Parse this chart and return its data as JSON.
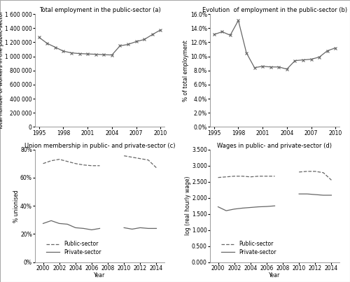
{
  "panel_a": {
    "title": "Total employment in the public-sector (a)",
    "xlabel": "",
    "ylabel": "Total number of workers in the public-sector",
    "years": [
      1995,
      1996,
      1997,
      1998,
      1999,
      2000,
      2001,
      2002,
      2003,
      2004,
      2005,
      2006,
      2007,
      2008,
      2009,
      2010
    ],
    "values": [
      1270000,
      1185000,
      1130000,
      1075000,
      1050000,
      1040000,
      1035000,
      1030000,
      1025000,
      1020000,
      1150000,
      1170000,
      1210000,
      1240000,
      1310000,
      1375000
    ],
    "ylim": [
      0,
      1600000
    ],
    "yticks": [
      0,
      200000,
      400000,
      600000,
      800000,
      1000000,
      1200000,
      1400000,
      1600000
    ],
    "xlim": [
      1994.5,
      2010.5
    ],
    "xticks": [
      1995,
      1998,
      2001,
      2004,
      2007,
      2010
    ]
  },
  "panel_b": {
    "title": "Evolution  of employment in the public-sector (b)",
    "xlabel": "",
    "ylabel": "% of total employment",
    "years": [
      1995,
      1996,
      1997,
      1998,
      1999,
      2000,
      2001,
      2002,
      2003,
      2004,
      2005,
      2006,
      2007,
      2008,
      2009,
      2010
    ],
    "values": [
      13.1,
      13.5,
      13.0,
      15.1,
      10.5,
      8.4,
      8.6,
      8.5,
      8.5,
      8.2,
      9.4,
      9.5,
      9.6,
      9.9,
      10.8,
      11.2
    ],
    "ylim": [
      0,
      16
    ],
    "ytick_vals": [
      0,
      2,
      4,
      6,
      8,
      10,
      12,
      14,
      16
    ],
    "ytick_labels": [
      "0.0%",
      "2.0%",
      "4.0%",
      "6.0%",
      "8.0%",
      "10.0%",
      "12.0%",
      "14.0%",
      "16.0%"
    ],
    "xlim": [
      1994.5,
      2010.5
    ],
    "xticks": [
      1995,
      1998,
      2001,
      2004,
      2007,
      2010
    ]
  },
  "panel_c": {
    "title": "Union membership in public- and private-sector (c)",
    "xlabel": "Year",
    "ylabel": "% unionised",
    "years_lfs": [
      2000,
      2001,
      2002,
      2003,
      2004,
      2005,
      2006,
      2007
    ],
    "years_qlfs": [
      2010,
      2011,
      2012,
      2013,
      2014
    ],
    "public_lfs": [
      70.0,
      72.0,
      73.0,
      71.5,
      70.0,
      69.0,
      68.5,
      68.5
    ],
    "public_qlfs": [
      75.5,
      74.5,
      73.5,
      72.5,
      67.0
    ],
    "private_lfs": [
      27.5,
      29.5,
      27.5,
      27.0,
      24.5,
      24.0,
      23.0,
      24.0
    ],
    "private_qlfs": [
      24.5,
      23.5,
      24.5,
      24.0,
      24.0
    ],
    "ylim": [
      0,
      80
    ],
    "ytick_vals": [
      0,
      20,
      40,
      60,
      80
    ],
    "ytick_labels": [
      "0%",
      "20%",
      "40%",
      "60%",
      "80%"
    ],
    "xlim": [
      1999,
      2015
    ],
    "xticks": [
      2000,
      2002,
      2004,
      2006,
      2008,
      2010,
      2012,
      2014
    ]
  },
  "panel_d": {
    "title": "Wages in public- and private-sector (d)",
    "xlabel": "Year",
    "ylabel": "log (real hourly wage)",
    "years_lfs": [
      2000,
      2001,
      2002,
      2003,
      2004,
      2005,
      2006,
      2007
    ],
    "years_qlfs": [
      2010,
      2011,
      2012,
      2013,
      2014
    ],
    "public_lfs": [
      2.63,
      2.65,
      2.67,
      2.67,
      2.65,
      2.67,
      2.67,
      2.67
    ],
    "public_qlfs": [
      2.8,
      2.82,
      2.82,
      2.78,
      2.55
    ],
    "private_lfs": [
      1.72,
      1.6,
      1.65,
      1.68,
      1.7,
      1.72,
      1.73,
      1.75
    ],
    "private_qlfs": [
      2.12,
      2.12,
      2.1,
      2.08,
      2.08
    ],
    "ylim": [
      0,
      3.5
    ],
    "ytick_vals": [
      0.0,
      0.5,
      1.0,
      1.5,
      2.0,
      2.5,
      3.0,
      3.5
    ],
    "ytick_labels": [
      "0.000",
      "0.500",
      "1.000",
      "1.500",
      "2.000",
      "2.500",
      "3.000",
      "3.500"
    ],
    "xlim": [
      1999,
      2015
    ],
    "xticks": [
      2000,
      2002,
      2004,
      2006,
      2008,
      2010,
      2012,
      2014
    ]
  },
  "line_color": "#666666",
  "marker_ab": "x",
  "markersize_ab": 3.5,
  "linewidth": 0.9,
  "fontsize_title": 6.0,
  "fontsize_label": 5.5,
  "fontsize_tick": 5.5
}
